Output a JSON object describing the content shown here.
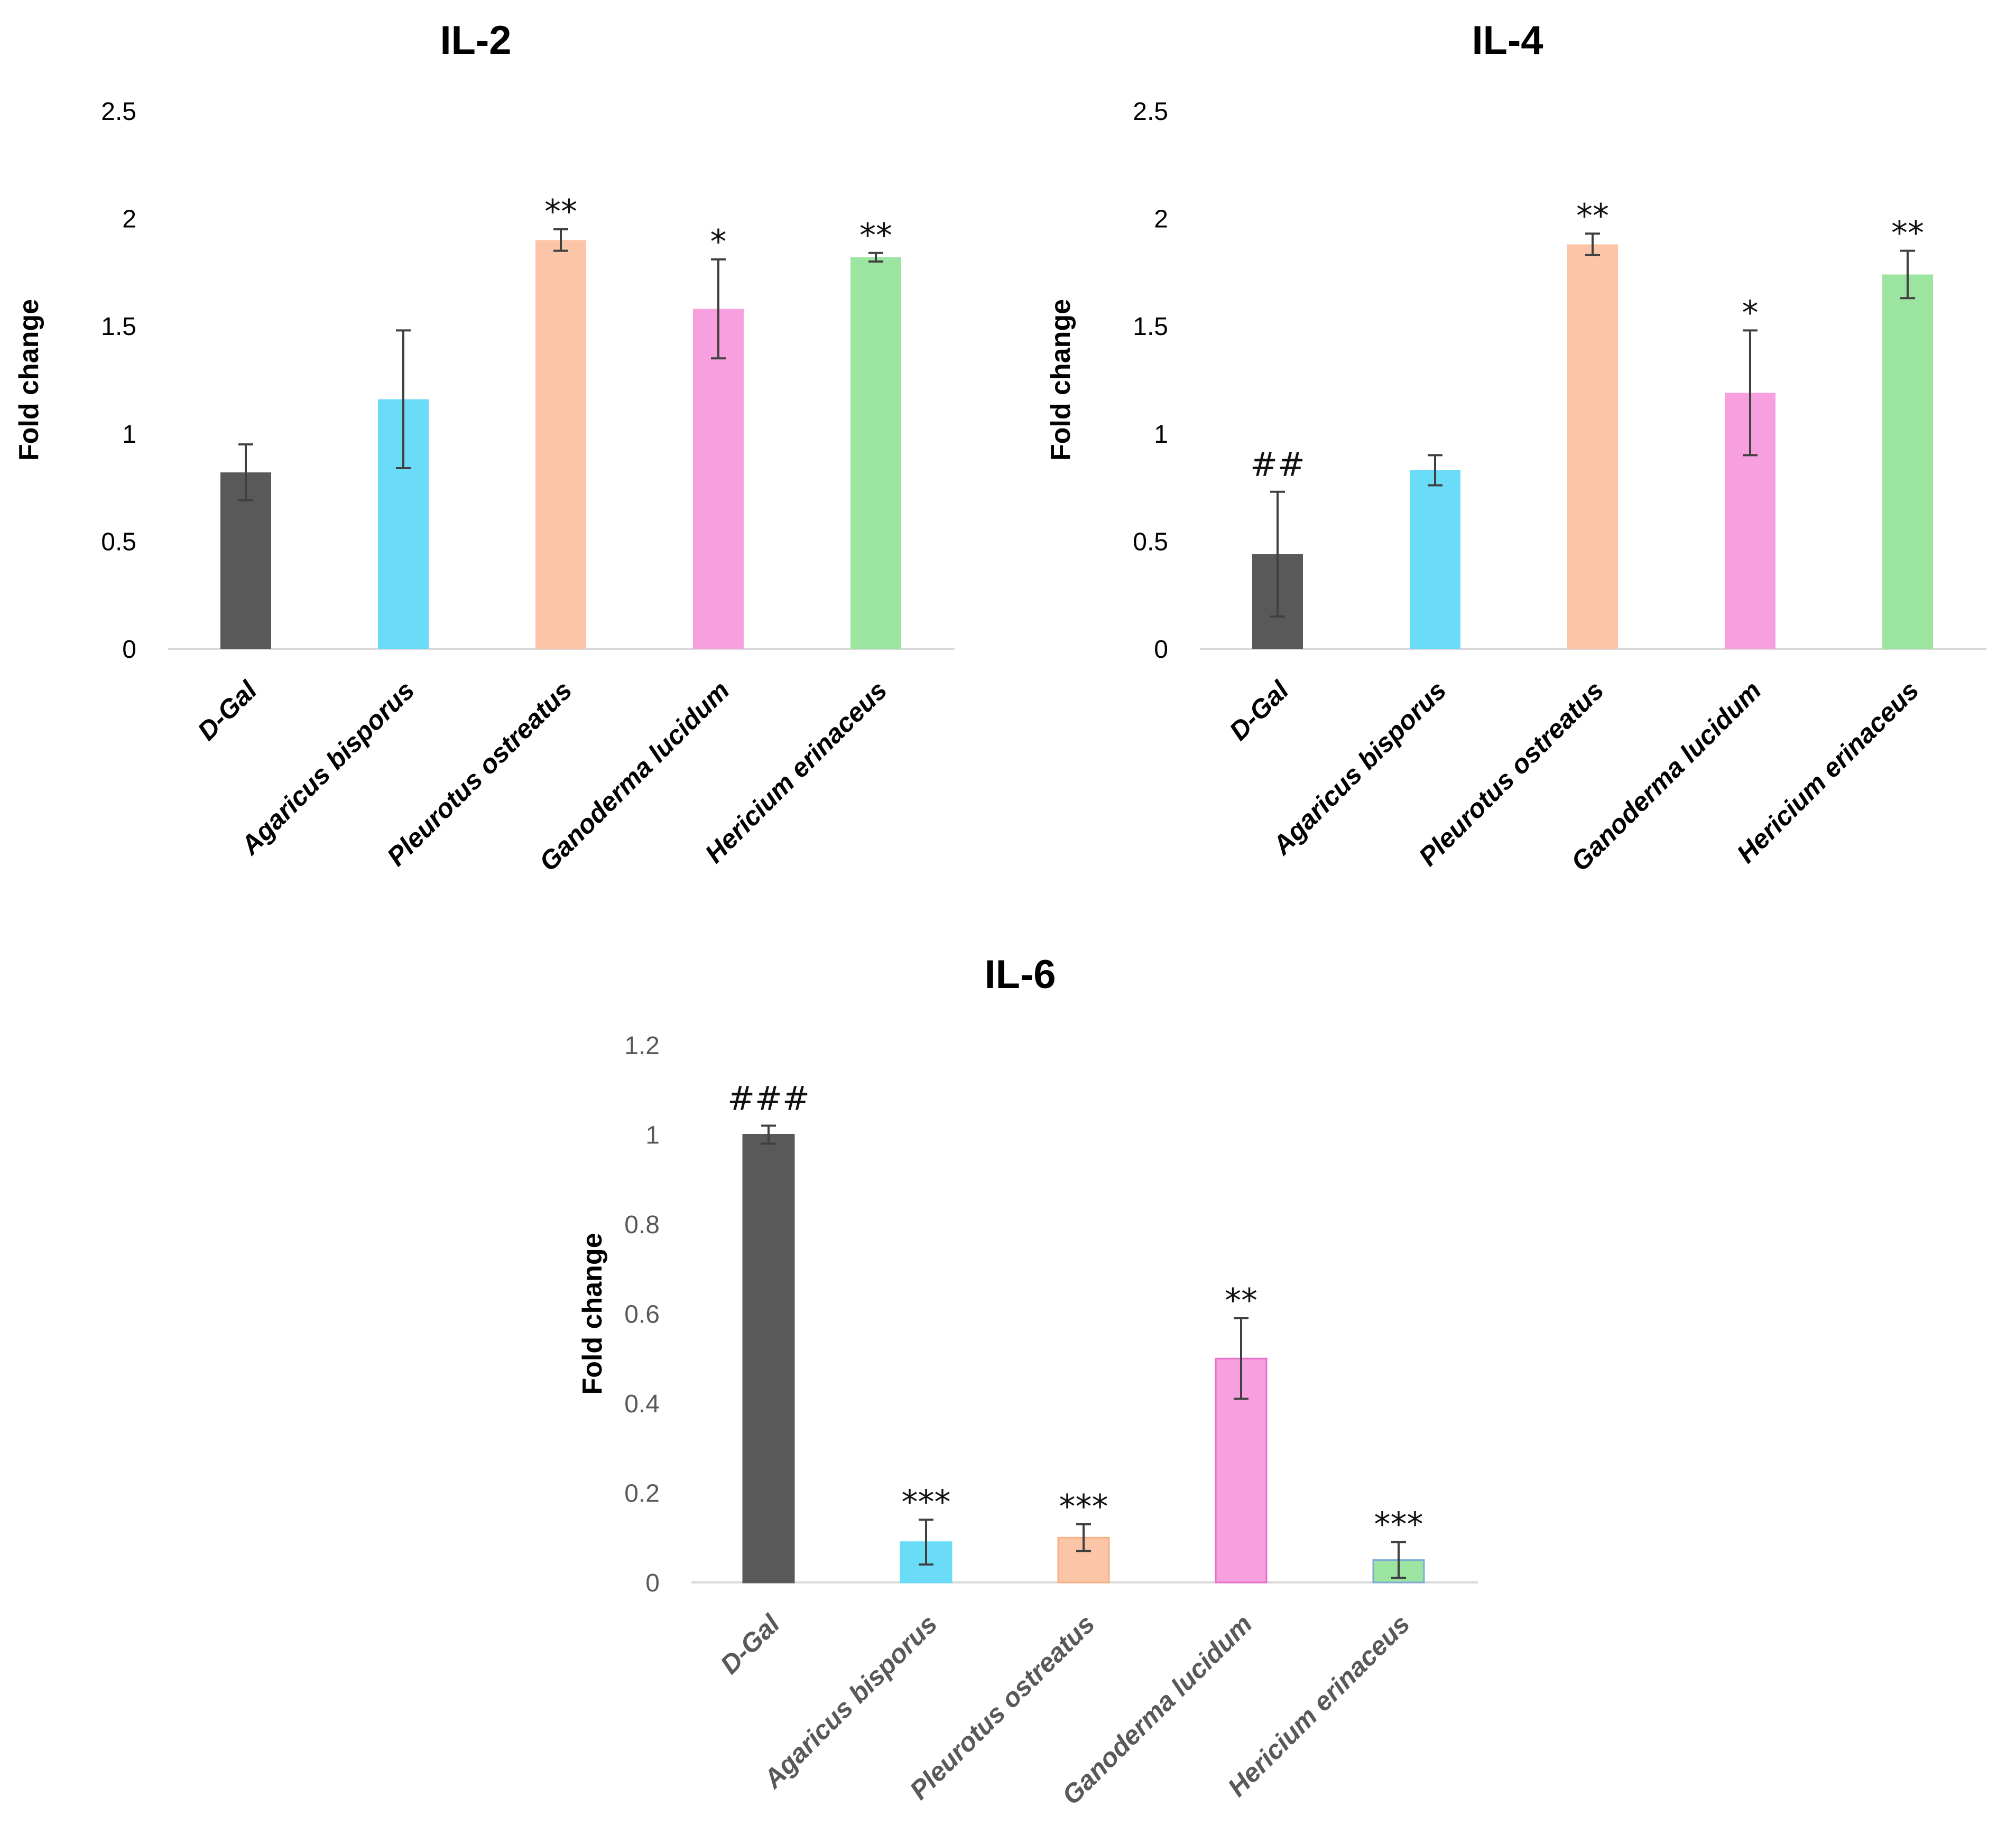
{
  "chart_data": [
    {
      "type": "bar",
      "title": "IL-2",
      "ylabel": "Fold change",
      "xlabel": "",
      "ylim": [
        0,
        2.5
      ],
      "yticks": [
        "0",
        "0.5",
        "1",
        "1.5",
        "2",
        "2.5"
      ],
      "categories": [
        "D-Gal",
        "Agaricus bisporus",
        "Pleurotus ostreatus",
        "Ganoderma lucidum",
        "Hericium erinaceus"
      ],
      "values": [
        0.82,
        1.16,
        1.9,
        1.58,
        1.82
      ],
      "errors": [
        0.13,
        0.32,
        0.05,
        0.23,
        0.02
      ],
      "significance": [
        "",
        "",
        "**",
        "*",
        "**"
      ],
      "colors": [
        "#595959",
        "#6ADCF7",
        "#FCC5A8",
        "#F8A0DF",
        "#9CE5A1"
      ],
      "grid": false,
      "legend": "none"
    },
    {
      "type": "bar",
      "title": "IL-4",
      "ylabel": "Fold change",
      "xlabel": "",
      "ylim": [
        0,
        2.5
      ],
      "yticks": [
        "0",
        "0.5",
        "1",
        "1.5",
        "2",
        "2.5"
      ],
      "categories": [
        "D-Gal",
        "Agaricus bisporus",
        "Pleurotus ostreatus",
        "Ganoderma lucidum",
        "Hericium erinaceus"
      ],
      "values": [
        0.44,
        0.83,
        1.88,
        1.19,
        1.74
      ],
      "errors": [
        0.29,
        0.07,
        0.05,
        0.29,
        0.11
      ],
      "significance": [
        "##",
        "",
        "**",
        "*",
        "**"
      ],
      "colors": [
        "#595959",
        "#6ADCF7",
        "#FCC5A8",
        "#F8A0DF",
        "#9CE5A1"
      ],
      "grid": false,
      "legend": "none"
    },
    {
      "type": "bar",
      "title": "IL-6",
      "ylabel": "Fold change",
      "xlabel": "",
      "ylim": [
        0,
        1.2
      ],
      "yticks": [
        "0",
        "0.2",
        "0.4",
        "0.6",
        "0.8",
        "1",
        "1.2"
      ],
      "categories": [
        "D-Gal",
        "Agaricus bisporus",
        "Pleurotus ostreatus",
        "Ganoderma lucidum",
        "Hericium erinaceus"
      ],
      "values": [
        1.0,
        0.09,
        0.1,
        0.5,
        0.05
      ],
      "errors": [
        0.02,
        0.05,
        0.03,
        0.09,
        0.04
      ],
      "significance": [
        "###",
        "***",
        "***",
        "**",
        "***"
      ],
      "colors": [
        "#595959",
        "#6ADCF7",
        "#FCC5A8",
        "#F8A0DF",
        "#9CE5A1"
      ],
      "grid": false,
      "legend": "none"
    }
  ],
  "style": {
    "axis_color": "#D9D9D9",
    "tick_label_color": "#000000",
    "tick_label_color_muted": "#595959",
    "error_bar_color": "#404040",
    "bar_outline_colors_il6": [
      "#595959",
      "#6ADCF7",
      "#F4B183",
      "#E86FC8",
      "#7FA9D6"
    ]
  }
}
